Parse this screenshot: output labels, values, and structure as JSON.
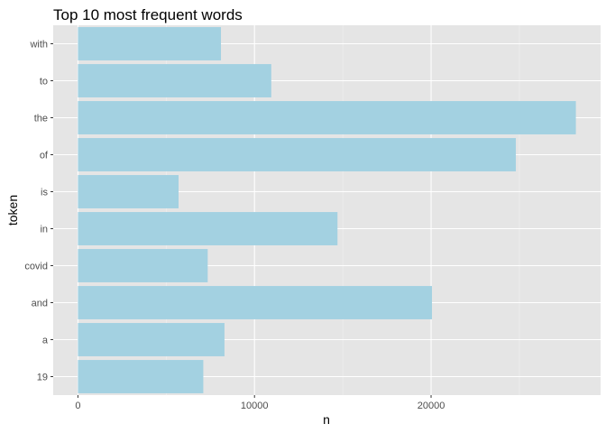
{
  "chart_data": {
    "type": "bar",
    "orientation": "horizontal",
    "title": "Top 10 most frequent words",
    "xlabel": "n",
    "ylabel": "token",
    "categories": [
      "with",
      "to",
      "the",
      "of",
      "is",
      "in",
      "covid",
      "and",
      "a",
      "19"
    ],
    "values": [
      8100,
      10950,
      28200,
      24800,
      5700,
      14700,
      7350,
      20050,
      8300,
      7100
    ],
    "xlim": [
      -1400,
      29600
    ],
    "x_ticks": [
      0,
      10000,
      20000
    ],
    "x_tick_labels": [
      "0",
      "10000",
      "20000"
    ],
    "grid": true,
    "legend": "none",
    "colors": {
      "bar": "#a3d1e1",
      "panel_background": "#e5e5e5",
      "grid_major": "#ffffff",
      "grid_minor": "#f0f0f0",
      "text": "#4d4d4d"
    }
  }
}
